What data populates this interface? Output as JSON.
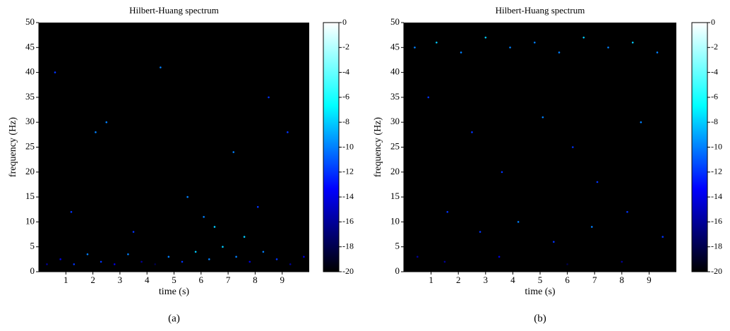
{
  "chart_data": [
    {
      "type": "scatter",
      "title": "Hilbert-Huang spectrum",
      "xlabel": "time (s)",
      "ylabel": "frequency (Hz)",
      "caption": "(a)",
      "xlim": [
        0,
        10
      ],
      "ylim": [
        0,
        50
      ],
      "xticks": [
        1,
        2,
        3,
        4,
        5,
        6,
        7,
        8,
        9
      ],
      "yticks": [
        0,
        5,
        10,
        15,
        20,
        25,
        30,
        35,
        40,
        45,
        50
      ],
      "clim": [
        -20,
        0
      ],
      "cticks": [
        0,
        -2,
        -4,
        -6,
        -8,
        -10,
        -12,
        -14,
        -16,
        -18,
        -20
      ],
      "colormap": [
        "#000000",
        "#0000ff",
        "#00ffff",
        "#ffffff"
      ],
      "x": [
        0.3,
        0.8,
        1.3,
        1.8,
        2.3,
        2.8,
        3.3,
        3.8,
        4.3,
        4.8,
        5.3,
        5.8,
        6.3,
        6.8,
        7.3,
        7.8,
        8.3,
        8.8,
        9.3,
        9.8,
        1.2,
        2.5,
        3.5,
        4.5,
        5.5,
        6.5,
        7.2,
        8.5,
        9.2,
        0.6,
        2.1,
        6.1,
        7.6,
        8.1
      ],
      "y": [
        1.5,
        2.5,
        1.5,
        3.5,
        2,
        1.5,
        3.5,
        2,
        1.5,
        3,
        2,
        4,
        2.5,
        5,
        3,
        2,
        4,
        2.5,
        1.5,
        3,
        12,
        30,
        8,
        41,
        15,
        9,
        24,
        35,
        28,
        40,
        28,
        11,
        7,
        13
      ],
      "z": [
        -16,
        -14,
        -12,
        -10,
        -12,
        -14,
        -10,
        -16,
        -18,
        -10,
        -12,
        -8,
        -10,
        -8,
        -10,
        -14,
        -10,
        -12,
        -16,
        -14,
        -12,
        -10,
        -12,
        -10,
        -10,
        -8,
        -10,
        -12,
        -12,
        -12,
        -10,
        -10,
        -8,
        -12
      ]
    },
    {
      "type": "scatter",
      "title": "Hilbert-Huang spectrum",
      "xlabel": "time (s)",
      "ylabel": "frequency (Hz)",
      "caption": "(b)",
      "xlim": [
        0,
        10
      ],
      "ylim": [
        0,
        50
      ],
      "xticks": [
        1,
        2,
        3,
        4,
        5,
        6,
        7,
        8,
        9
      ],
      "yticks": [
        0,
        5,
        10,
        15,
        20,
        25,
        30,
        35,
        40,
        45,
        50
      ],
      "clim": [
        -20,
        0
      ],
      "cticks": [
        0,
        -2,
        -4,
        -6,
        -8,
        -10,
        -12,
        -14,
        -16,
        -18,
        -20
      ],
      "colormap": [
        "#000000",
        "#0000ff",
        "#00ffff",
        "#ffffff"
      ],
      "x": [
        0.4,
        1.2,
        2.1,
        3.0,
        3.9,
        4.8,
        5.7,
        6.6,
        7.5,
        8.4,
        9.3,
        0.9,
        2.5,
        3.6,
        5.1,
        6.2,
        7.1,
        8.7,
        1.6,
        2.8,
        4.2,
        5.5,
        6.9,
        8.2,
        9.5,
        0.5,
        1.5,
        3.5,
        6.0,
        8.0
      ],
      "y": [
        45,
        46,
        44,
        47,
        45,
        46,
        44,
        47,
        45,
        46,
        44,
        35,
        28,
        20,
        31,
        25,
        18,
        30,
        12,
        8,
        10,
        6,
        9,
        12,
        7,
        3,
        2,
        3,
        1.5,
        2
      ],
      "z": [
        -10,
        -8,
        -10,
        -8,
        -10,
        -10,
        -10,
        -8,
        -10,
        -8,
        -10,
        -12,
        -12,
        -12,
        -10,
        -12,
        -12,
        -10,
        -12,
        -12,
        -10,
        -12,
        -10,
        -12,
        -12,
        -16,
        -16,
        -14,
        -18,
        -16
      ]
    }
  ]
}
